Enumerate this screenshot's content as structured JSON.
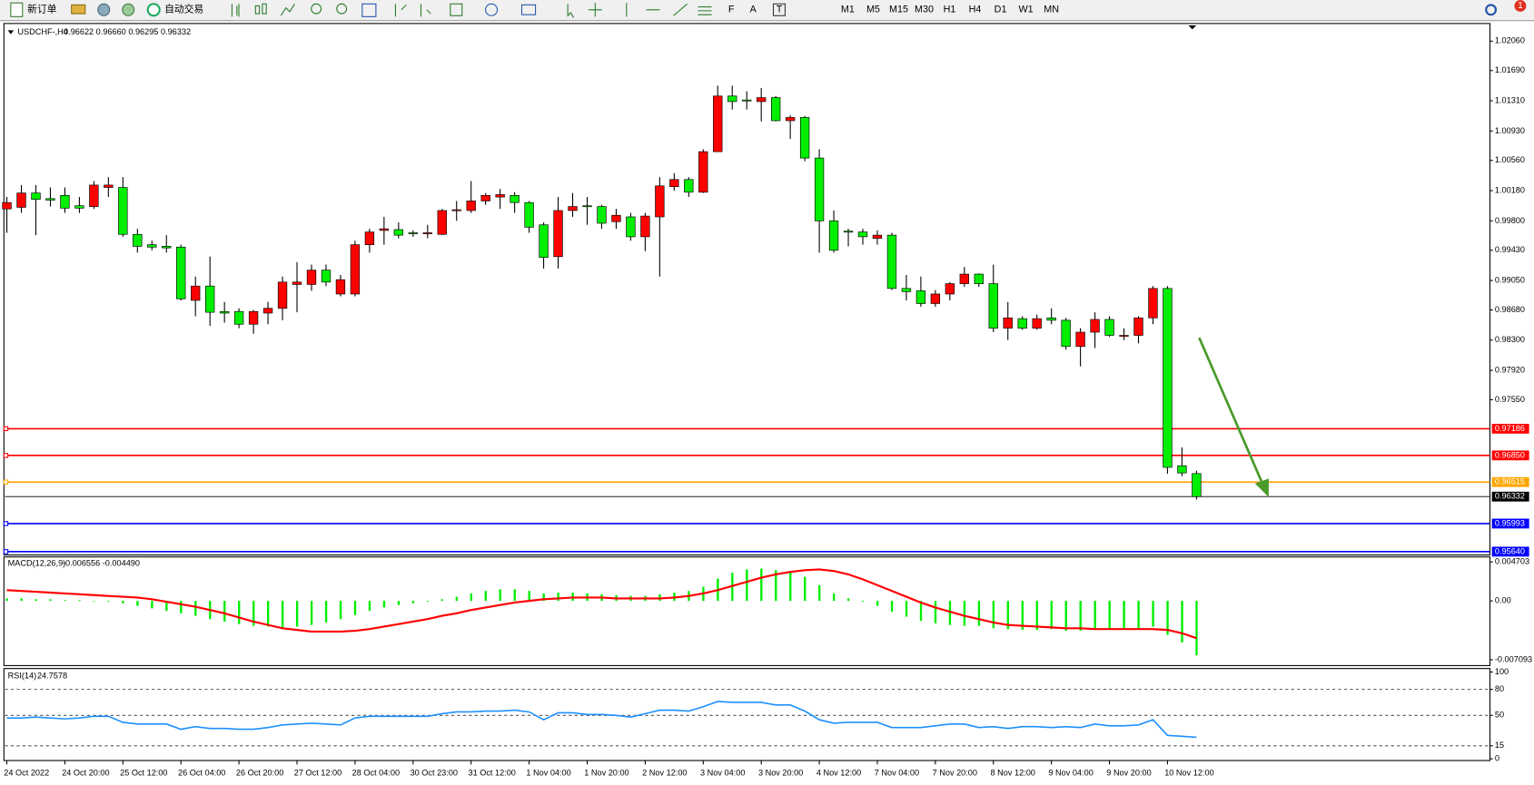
{
  "toolbar": {
    "new_order": "新订单",
    "auto_trading": "自动交易",
    "timeframes": [
      "M1",
      "M5",
      "M15",
      "M30",
      "H1",
      "H4",
      "D1",
      "W1",
      "MN"
    ],
    "badge": "1"
  },
  "chart_data": [
    {
      "type": "candlestick",
      "title": "USDCHF-,H4",
      "ohlc_text": "0.96622 0.96660 0.96295 0.96332",
      "up_color": "#ff0000",
      "down_color": "#00ee00",
      "categories": [
        "24 Oct 2022",
        null,
        null,
        null,
        "24 Oct 20:00",
        null,
        null,
        null,
        "25 Oct 12:00",
        null,
        null,
        null,
        "26 Oct 04:00",
        null,
        null,
        null,
        "26 Oct 20:00",
        null,
        null,
        null,
        "27 Oct 12:00",
        null,
        null,
        null,
        "28 Oct 04:00",
        null,
        null,
        null,
        "30 Oct 23:00",
        null,
        null,
        null,
        "31 Oct 12:00",
        null,
        null,
        null,
        "1 Nov 04:00",
        null,
        null,
        null,
        "1 Nov 20:00",
        null,
        null,
        null,
        "2 Nov 12:00",
        null,
        null,
        null,
        "3 Nov 04:00",
        null,
        null,
        null,
        "3 Nov 20:00",
        null,
        null,
        null,
        "4 Nov 12:00",
        null,
        null,
        null,
        "7 Nov 04:00",
        null,
        null,
        null,
        "7 Nov 20:00",
        null,
        null,
        null,
        "8 Nov 12:00",
        null,
        null,
        null,
        "9 Nov 04:00",
        null,
        null,
        null,
        "9 Nov 20:00",
        null,
        null,
        null,
        "10 Nov 12:00",
        null,
        null
      ],
      "open": [
        0.9995,
        0.9997,
        1.0015,
        1.0008,
        1.0012,
        0.9999,
        0.9998,
        1.0022,
        1.0022,
        0.9963,
        0.995,
        0.9948,
        0.9947,
        0.988,
        0.9898,
        0.9866,
        0.9866,
        0.985,
        0.9864,
        0.987,
        0.99,
        0.99,
        0.9918,
        0.9888,
        0.9888,
        0.995,
        0.9968,
        0.9969,
        0.9965,
        0.9964,
        0.9963,
        0.9993,
        0.9993,
        1.0005,
        1.001,
        1.0012,
        1.0003,
        0.9975,
        0.9935,
        0.9993,
        0.9999,
        0.9998,
        0.9979,
        0.9985,
        0.996,
        0.9985,
        1.0023,
        1.0032,
        1.0016,
        1.0067,
        1.0137,
        1.0132,
        1.013,
        1.0135,
        1.0106,
        1.011,
        1.0059,
        0.998,
        0.9967,
        0.9966,
        0.9958,
        0.9962,
        0.9895,
        0.9892,
        0.9876,
        0.9888,
        0.9901,
        0.9913,
        0.9901,
        0.9845,
        0.9857,
        0.9845,
        0.9858,
        0.9855,
        0.9822,
        0.984,
        0.9856,
        0.9835,
        0.9836,
        0.9858,
        0.9895,
        0.9672,
        0.96622
      ],
      "high": [
        1.001,
        1.0025,
        1.0025,
        1.0022,
        1.0022,
        1.001,
        1.003,
        1.0035,
        1.0035,
        0.997,
        0.9955,
        0.9962,
        0.995,
        0.991,
        0.9935,
        0.9878,
        0.987,
        0.9868,
        0.9878,
        0.991,
        0.9928,
        0.9925,
        0.9925,
        0.9912,
        0.9955,
        0.997,
        0.9985,
        0.9978,
        0.9968,
        0.9975,
        0.9995,
        1.0005,
        1.003,
        1.0015,
        1.002,
        1.0016,
        1.0005,
        0.9978,
        1.001,
        1.0015,
        1.001,
        1.0,
        0.9995,
        0.999,
        0.999,
        1.0035,
        1.004,
        1.0035,
        1.007,
        1.015,
        1.015,
        1.0143,
        1.0147,
        1.0137,
        1.0113,
        1.0112,
        1.007,
        0.9993,
        0.997,
        0.997,
        0.9968,
        0.9965,
        0.9912,
        0.991,
        0.9893,
        0.9903,
        0.9922,
        0.9914,
        0.9925,
        0.9878,
        0.986,
        0.9862,
        0.987,
        0.9858,
        0.9845,
        0.9865,
        0.986,
        0.9845,
        0.986,
        0.9898,
        0.9898,
        0.9695,
        0.9666
      ],
      "low": [
        0.9965,
        0.999,
        0.9962,
        0.9998,
        0.999,
        0.999,
        0.9995,
        1.001,
        0.996,
        0.994,
        0.9943,
        0.994,
        0.988,
        0.986,
        0.9848,
        0.9852,
        0.9845,
        0.9838,
        0.985,
        0.9855,
        0.9865,
        0.9892,
        0.9898,
        0.9885,
        0.9885,
        0.994,
        0.995,
        0.9958,
        0.996,
        0.9958,
        0.9962,
        0.998,
        0.999,
        1.0,
        0.9995,
        0.999,
        0.9965,
        0.992,
        0.992,
        0.9985,
        0.9975,
        0.997,
        0.997,
        0.9955,
        0.9942,
        0.991,
        1.0018,
        1.001,
        1.0015,
        1.0067,
        1.012,
        1.012,
        1.0105,
        1.0105,
        1.0083,
        1.0055,
        0.994,
        0.994,
        0.9948,
        0.995,
        0.995,
        0.9893,
        0.988,
        0.9872,
        0.9872,
        0.988,
        0.9897,
        0.9897,
        0.984,
        0.983,
        0.9843,
        0.9843,
        0.985,
        0.9818,
        0.9797,
        0.982,
        0.9834,
        0.983,
        0.9826,
        0.985,
        0.9662,
        0.9659,
        0.96295
      ],
      "close": [
        1.0003,
        1.0015,
        1.0007,
        1.0006,
        0.9996,
        0.9996,
        1.0025,
        1.0025,
        0.9963,
        0.9948,
        0.9947,
        0.9946,
        0.9882,
        0.9898,
        0.9865,
        0.9864,
        0.985,
        0.9866,
        0.987,
        0.9903,
        0.9903,
        0.9918,
        0.9903,
        0.9906,
        0.995,
        0.9966,
        0.997,
        0.9962,
        0.9964,
        0.9965,
        0.9993,
        0.9994,
        1.0005,
        1.0012,
        1.0013,
        1.0003,
        0.9972,
        0.9934,
        0.9993,
        0.9998,
        0.9998,
        0.9977,
        0.9987,
        0.996,
        0.9986,
        1.0024,
        1.0032,
        1.0016,
        1.0067,
        1.0137,
        1.013,
        1.0131,
        1.0135,
        1.0106,
        1.011,
        1.0059,
        0.998,
        0.9943,
        0.9966,
        0.996,
        0.9962,
        0.9895,
        0.9891,
        0.9876,
        0.9888,
        0.9901,
        0.9913,
        0.9901,
        0.9845,
        0.9858,
        0.9845,
        0.9857,
        0.9855,
        0.9822,
        0.984,
        0.9856,
        0.9836,
        0.9836,
        0.9858,
        0.9895,
        0.967,
        0.9663,
        0.96332
      ],
      "ylim": [
        0.95598,
        1.02282
      ],
      "yticks": [
        {
          "value": 1.0206,
          "label": "1.02060"
        },
        {
          "value": 1.0169,
          "label": "1.01690"
        },
        {
          "value": 1.0131,
          "label": "1.01310"
        },
        {
          "value": 1.0093,
          "label": "1.00930"
        },
        {
          "value": 1.0056,
          "label": "1.00560"
        },
        {
          "value": 1.0018,
          "label": "1.00180"
        },
        {
          "value": 0.998,
          "label": "0.99800"
        },
        {
          "value": 0.9943,
          "label": "0.99430"
        },
        {
          "value": 0.9905,
          "label": "0.99050"
        },
        {
          "value": 0.9868,
          "label": "0.98680"
        },
        {
          "value": 0.983,
          "label": "0.98300"
        },
        {
          "value": 0.9792,
          "label": "0.97920"
        },
        {
          "value": 0.9755,
          "label": "0.97550"
        }
      ],
      "levels": [
        {
          "value": 0.97186,
          "label": "0.97186",
          "color": "#ff0000"
        },
        {
          "value": 0.9685,
          "label": "0.96850",
          "color": "#ff0000"
        },
        {
          "value": 0.96515,
          "label": "0.96515",
          "color": "#ffa500"
        },
        {
          "value": 0.96332,
          "label": "0.96332",
          "color": "#000000"
        },
        {
          "value": 0.95993,
          "label": "0.95993",
          "color": "#0000ff"
        },
        {
          "value": 0.9564,
          "label": "0.95640",
          "color": "#0000ff"
        }
      ]
    },
    {
      "type": "macd",
      "title": "MACD(12,26,9)",
      "values_text": "-0.006556 -0.004490",
      "hist_color": "#00ee00",
      "signal_color": "#ff0000",
      "hist": [
        0.0003,
        0.0003,
        0.0002,
        0.0002,
        0.0001,
        0.0001,
        0,
        -0.0001,
        -0.0003,
        -0.0006,
        -0.0009,
        -0.0012,
        -0.0015,
        -0.0018,
        -0.0022,
        -0.0025,
        -0.0028,
        -0.003,
        -0.0031,
        -0.0032,
        -0.0031,
        -0.0029,
        -0.0026,
        -0.0022,
        -0.0017,
        -0.0012,
        -0.0008,
        -0.0005,
        -0.0003,
        -0.0001,
        0.0002,
        0.0005,
        0.0009,
        0.0012,
        0.0014,
        0.0014,
        0.0012,
        0.0009,
        0.001,
        0.001,
        0.0009,
        0.0008,
        0.0007,
        0.0006,
        0.0006,
        0.0008,
        0.001,
        0.0012,
        0.0017,
        0.0027,
        0.0034,
        0.0038,
        0.0039,
        0.0037,
        0.0034,
        0.0029,
        0.0019,
        0.0009,
        0.0003,
        -0.0001,
        -0.0006,
        -0.0013,
        -0.0019,
        -0.0024,
        -0.0027,
        -0.0029,
        -0.003,
        -0.003,
        -0.0033,
        -0.0034,
        -0.0035,
        -0.0035,
        -0.0034,
        -0.0036,
        -0.0036,
        -0.0035,
        -0.0034,
        -0.0034,
        -0.0033,
        -0.0031,
        -0.0041,
        -0.005,
        -0.006556
      ],
      "signal": [
        0.0013,
        0.0012,
        0.0011,
        0.001,
        0.0009,
        0.0008,
        0.0007,
        0.0006,
        0.0005,
        0.0004,
        0.0002,
        -0.0001,
        -0.0004,
        -0.0007,
        -0.0011,
        -0.0015,
        -0.002,
        -0.0025,
        -0.0029,
        -0.0033,
        -0.0035,
        -0.0037,
        -0.0037,
        -0.0037,
        -0.0036,
        -0.0034,
        -0.0031,
        -0.0028,
        -0.0025,
        -0.0022,
        -0.0018,
        -0.0015,
        -0.0011,
        -0.0008,
        -0.0005,
        -0.0002,
        0,
        0.0002,
        0.0003,
        0.0004,
        0.0004,
        0.0004,
        0.0003,
        0.0003,
        0.0003,
        0.0003,
        0.0004,
        0.0006,
        0.0009,
        0.0013,
        0.0018,
        0.0023,
        0.0028,
        0.0032,
        0.0035,
        0.0037,
        0.0038,
        0.0036,
        0.0032,
        0.0026,
        0.0019,
        0.0012,
        0.0005,
        -0.0002,
        -0.0008,
        -0.0013,
        -0.0018,
        -0.0022,
        -0.0026,
        -0.0029,
        -0.003,
        -0.0031,
        -0.0032,
        -0.0033,
        -0.0033,
        -0.0034,
        -0.0034,
        -0.0034,
        -0.0034,
        -0.0034,
        -0.0035,
        -0.0039,
        -0.00449
      ],
      "ylim": [
        -0.0078,
        0.0053
      ],
      "yticks": [
        0.004703,
        {
          "value": 0,
          "label": "0.00"
        },
        -0.007093
      ]
    },
    {
      "type": "rsi",
      "title": "RSI(14)",
      "values_text": "24.7578",
      "color": "#1e90ff",
      "values": [
        47,
        47,
        48,
        47,
        46,
        47,
        49,
        49,
        42,
        40,
        40,
        40,
        34,
        37,
        35,
        35,
        34,
        34,
        36,
        39,
        40,
        41,
        40,
        39,
        47,
        49,
        49,
        49,
        49,
        49,
        52,
        54,
        54,
        55,
        55,
        56,
        54,
        45,
        53,
        53,
        51,
        51,
        50,
        48,
        52,
        56,
        56,
        55,
        60,
        66,
        65,
        65,
        65,
        62,
        62,
        55,
        45,
        41,
        42,
        42,
        42,
        36,
        36,
        36,
        38,
        40,
        40,
        36,
        37,
        35,
        37,
        37,
        36,
        37,
        36,
        40,
        38,
        38,
        39,
        45,
        27,
        26,
        24.7578
      ],
      "ylim": [
        -2,
        104
      ],
      "yticks": [
        100,
        80,
        50,
        15,
        0
      ],
      "levels": [
        80,
        50,
        15
      ]
    }
  ]
}
